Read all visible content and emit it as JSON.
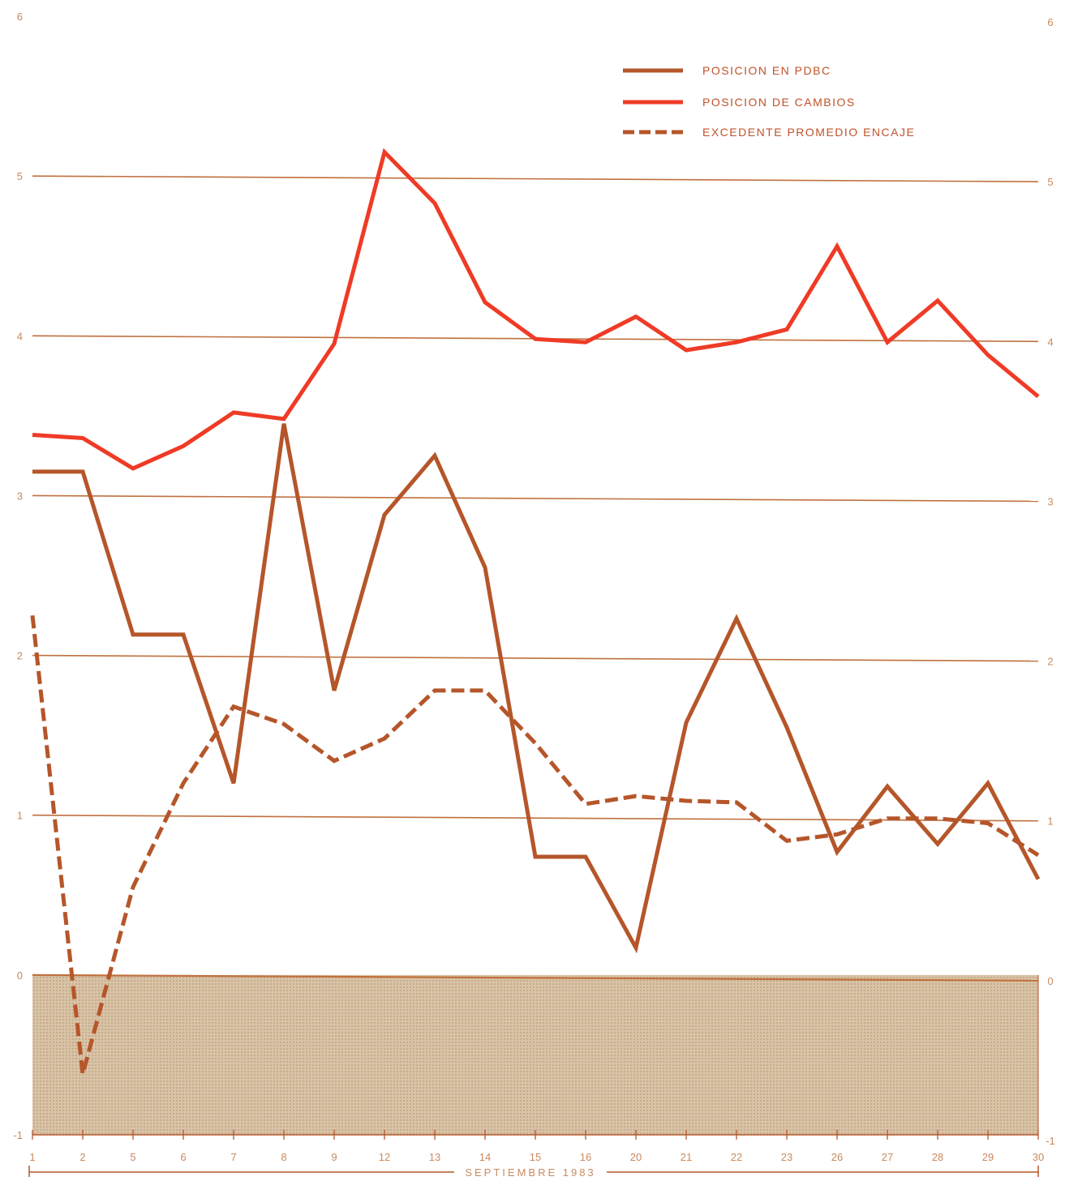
{
  "chart_data": {
    "type": "line",
    "x_label": "SEPTIEMBRE 1983",
    "categories": [
      "1",
      "2",
      "5",
      "6",
      "7",
      "8",
      "9",
      "12",
      "13",
      "14",
      "15",
      "16",
      "20",
      "21",
      "22",
      "23",
      "26",
      "27",
      "28",
      "29",
      "30"
    ],
    "ylim": [
      -1,
      6
    ],
    "y_ticks_left": [
      "-1",
      "0",
      "1",
      "2",
      "3",
      "4",
      "5",
      "6"
    ],
    "y_ticks_right": [
      "-1",
      "0",
      "1",
      "2",
      "3",
      "4",
      "5",
      "6"
    ],
    "y_tick_values": [
      -1,
      0,
      1,
      2,
      3,
      4,
      5,
      6
    ],
    "gridlines": [
      0,
      1,
      2,
      3,
      4,
      5
    ],
    "negative_region_shaded": true,
    "legend_position": "top-right",
    "series": [
      {
        "name": "POSICION EN PDBC",
        "color": "#b5562a",
        "style": "solid",
        "values": [
          3.15,
          3.15,
          2.13,
          2.13,
          1.2,
          3.45,
          1.78,
          2.88,
          3.25,
          2.55,
          0.74,
          0.74,
          0.17,
          1.58,
          2.23,
          1.55,
          0.77,
          1.18,
          0.82,
          1.2,
          0.6
        ]
      },
      {
        "name": "POSICION DE CAMBIOS",
        "color": "#ef3b26",
        "style": "solid",
        "values": [
          3.38,
          3.36,
          3.17,
          3.31,
          3.52,
          3.48,
          3.95,
          5.15,
          4.83,
          4.21,
          3.98,
          3.96,
          4.12,
          3.91,
          3.96,
          4.04,
          4.56,
          3.96,
          4.22,
          3.88,
          3.62
        ]
      },
      {
        "name": "EXCEDENTE PROMEDIO ENCAJE",
        "color": "#b5562a",
        "style": "dashed",
        "values": [
          2.25,
          -0.62,
          0.55,
          1.2,
          1.68,
          1.57,
          1.34,
          1.48,
          1.78,
          1.78,
          1.45,
          1.07,
          1.12,
          1.09,
          1.08,
          0.84,
          0.88,
          0.98,
          0.98,
          0.95,
          0.75
        ]
      }
    ]
  }
}
